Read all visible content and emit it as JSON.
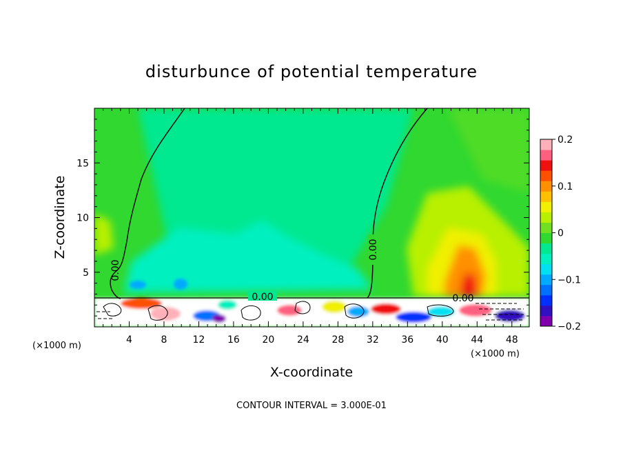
{
  "chart_data": {
    "type": "heatmap",
    "title": "disturbunce of potential temperature",
    "xlabel": "X-coordinate",
    "ylabel": "Z-coordinate",
    "x_unit_left": "(×1000 m)",
    "x_unit_right": "(×1000 m)",
    "xlim": [
      0,
      50
    ],
    "ylim": [
      0,
      20
    ],
    "xticks": [
      4,
      8,
      12,
      16,
      20,
      24,
      28,
      32,
      36,
      40,
      44,
      48
    ],
    "xtick_labels": [
      "4",
      "8",
      "12",
      "16",
      "20",
      "24",
      "28",
      "32",
      "36",
      "40",
      "44",
      "48"
    ],
    "yticks": [
      5,
      10,
      15
    ],
    "ytick_labels": [
      "5",
      "10",
      "15"
    ],
    "colorbar": {
      "min": -0.2,
      "max": 0.2,
      "ticks": [
        0.2,
        0.1,
        0,
        -0.1,
        -0.2
      ],
      "tick_labels": [
        "0.2",
        "0.1",
        "0",
        "−0.1",
        "−0.2"
      ],
      "colors": [
        "#8000b0",
        "#3010c0",
        "#0030ff",
        "#0070ff",
        "#00aaff",
        "#00e0f0",
        "#00f0c0",
        "#00e890",
        "#30d830",
        "#70e020",
        "#b8f000",
        "#f0f000",
        "#ffc000",
        "#ff9000",
        "#ff5000",
        "#f01010",
        "#ff6080",
        "#ffb0b8"
      ]
    },
    "contour_labels": [
      "0.00",
      "0.00",
      "0.00",
      "0.00"
    ],
    "annotation": "CONTOUR INTERVAL = 3.000E-01"
  }
}
